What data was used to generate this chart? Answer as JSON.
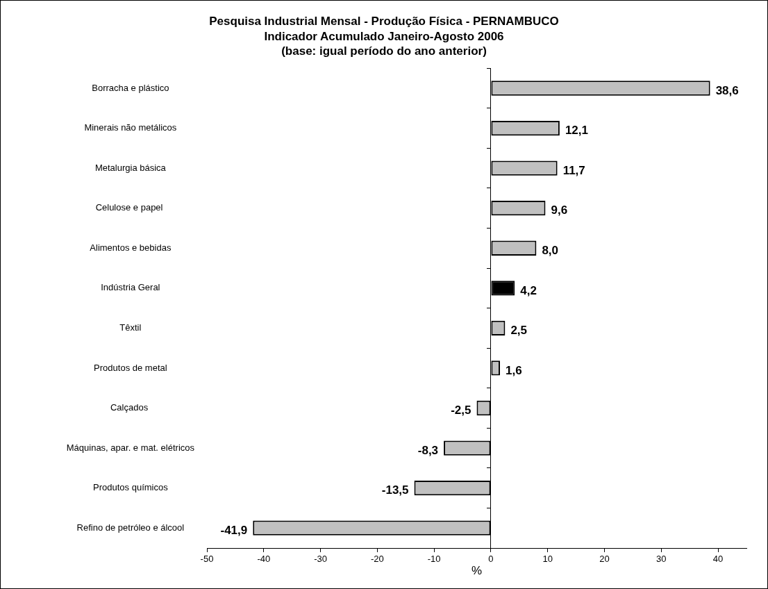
{
  "chart_data": {
    "type": "bar",
    "orientation": "horizontal",
    "title": "Pesquisa Industrial Mensal - Produção Física - PERNAMBUCO",
    "subtitle": "Indicador Acumulado Janeiro-Agosto 2006\n(base: igual período do ano anterior)",
    "xlabel": "%",
    "categories": [
      "Borracha e plástico",
      "Minerais não metálicos",
      "Metalurgia básica",
      "Celulose e papel ",
      "Alimentos e bebidas",
      "Indústria Geral",
      "Têxtil",
      "Produtos de metal",
      "Calçados ",
      "Máquinas, apar. e mat. elétricos",
      "Produtos químicos",
      "Refino de petróleo e álcool"
    ],
    "values": [
      38.6,
      12.1,
      11.7,
      9.6,
      8.0,
      4.2,
      2.5,
      1.6,
      -2.5,
      -8.3,
      -13.5,
      -41.9
    ],
    "value_labels": [
      "38,6",
      "12,1",
      "11,7",
      "9,6",
      "8,0",
      "4,2",
      "2,5",
      "1,6",
      "-2,5",
      "-8,3",
      "-13,5",
      "-41,9"
    ],
    "colors": [
      "#c0c0c0",
      "#c0c0c0",
      "#c0c0c0",
      "#c0c0c0",
      "#c0c0c0",
      "#000000",
      "#c0c0c0",
      "#c0c0c0",
      "#c0c0c0",
      "#c0c0c0",
      "#c0c0c0",
      "#c0c0c0"
    ],
    "xlim": [
      -50,
      45
    ],
    "xticks": [
      -50,
      -40,
      -30,
      -20,
      -10,
      0,
      10,
      20,
      30,
      40
    ],
    "legend": false
  }
}
